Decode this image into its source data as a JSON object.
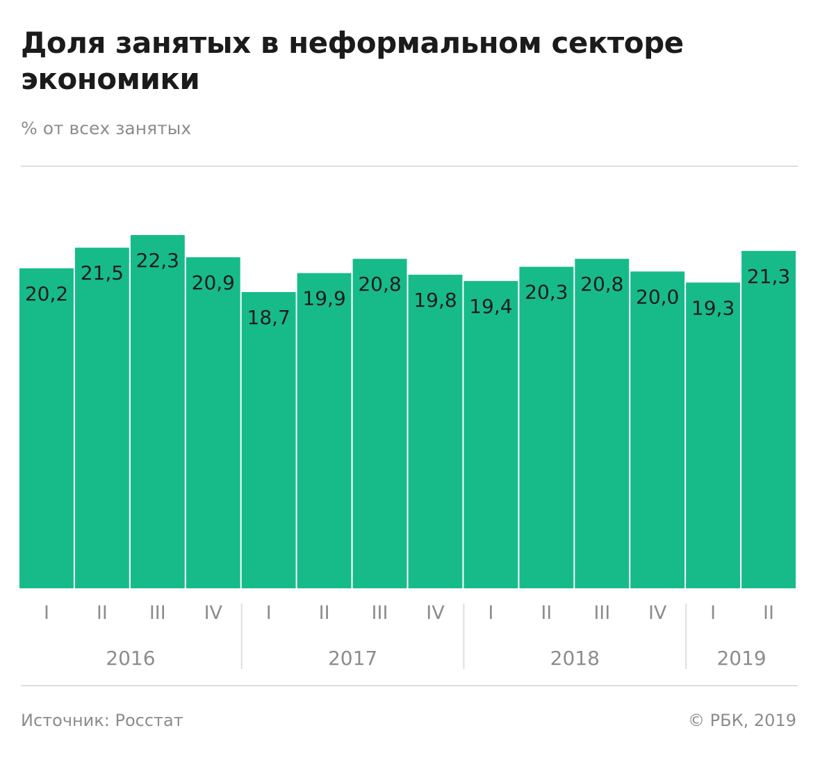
{
  "title": "Доля занятых в неформальном секторе экономики",
  "subtitle": "% от всех занятых",
  "footer": {
    "source": "Источник: Росстат",
    "copyright": "© РБК, 2019"
  },
  "colors": {
    "bar": "#17bb8a",
    "text": "#1b1b1b",
    "muted": "#8c8c8c",
    "rule": "#dedede"
  },
  "chart_data": {
    "type": "bar",
    "title": "Доля занятых в неформальном секторе экономики",
    "ylabel": "% от всех занятых",
    "xlabel": "",
    "grid": false,
    "legend": "none",
    "categories": [
      "I",
      "II",
      "III",
      "IV",
      "I",
      "II",
      "III",
      "IV",
      "I",
      "II",
      "III",
      "IV",
      "I",
      "II"
    ],
    "years": [
      {
        "label": "2016",
        "count": 4
      },
      {
        "label": "2017",
        "count": 4
      },
      {
        "label": "2018",
        "count": 4
      },
      {
        "label": "2019",
        "count": 2
      }
    ],
    "values": [
      20.2,
      21.5,
      22.3,
      20.9,
      18.7,
      19.9,
      20.8,
      19.8,
      19.4,
      20.3,
      20.8,
      20.0,
      19.3,
      21.3
    ],
    "value_labels": [
      "20,2",
      "21,5",
      "22,3",
      "20,9",
      "18,7",
      "19,9",
      "20,8",
      "19,8",
      "19,4",
      "20,3",
      "20,8",
      "20,0",
      "19,3",
      "21,3"
    ],
    "ylim": [
      0,
      22.3
    ]
  }
}
